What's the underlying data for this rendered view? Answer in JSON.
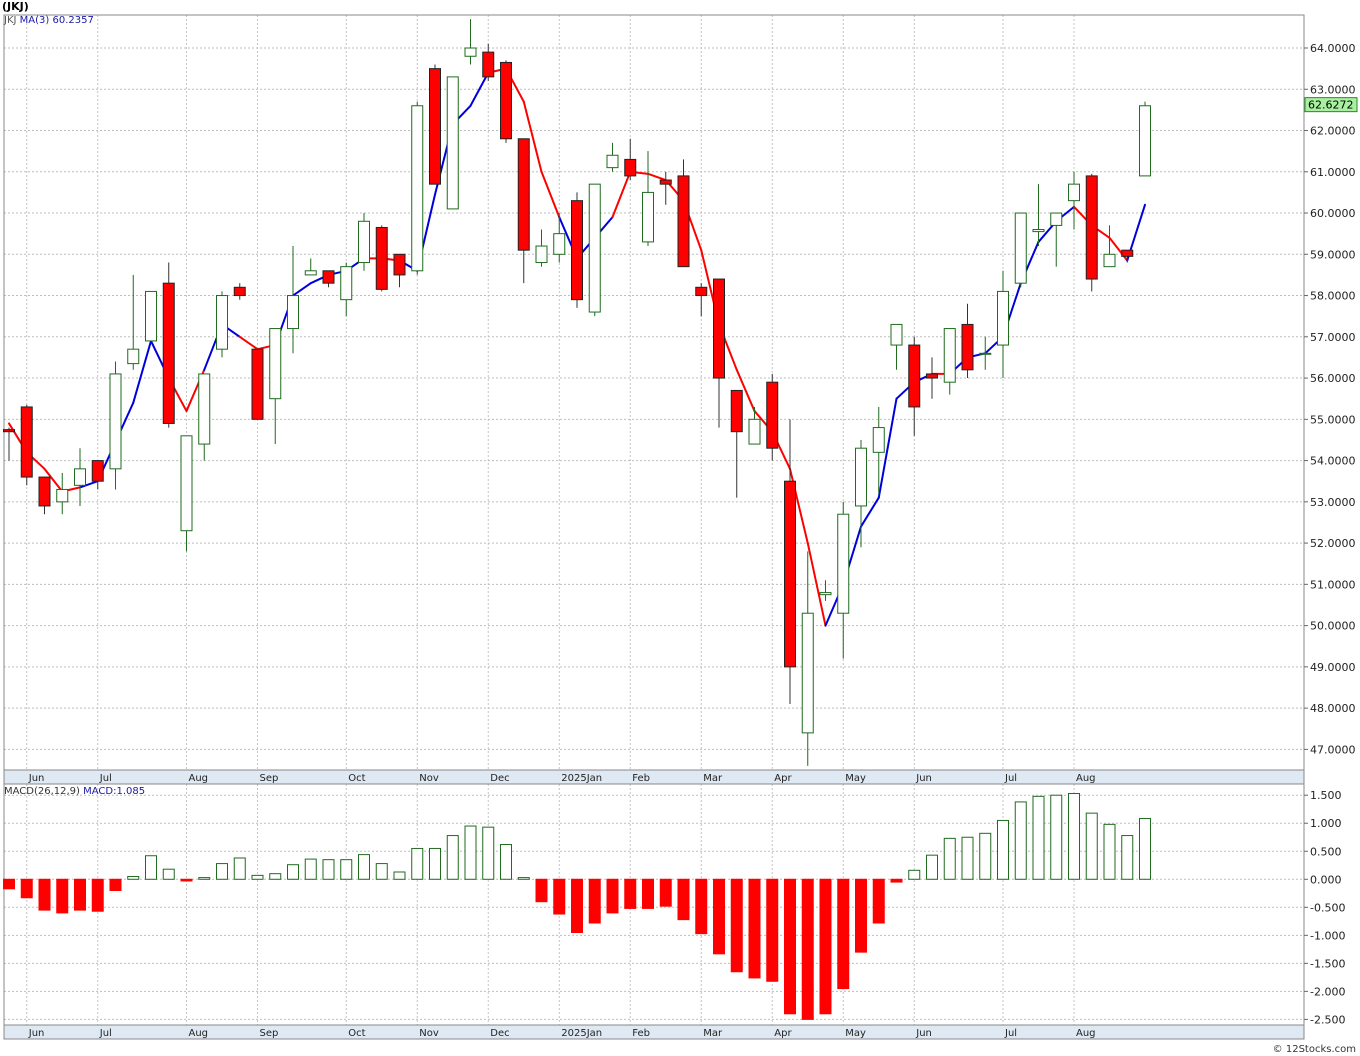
{
  "header": {
    "ticker": "(JKJ)"
  },
  "legend_top": {
    "symbol": "JKJ",
    "ma_label": "MA(3)",
    "ma_value": "60.2357"
  },
  "legend_bottom": {
    "macd_label": "MACD(26,12,9)",
    "macd_value": "MACD:1.085"
  },
  "credit": "© 12Stocks.com",
  "colors": {
    "up": "#1f6b1f",
    "down": "#ff0000",
    "ma_up": "#0000dd",
    "ma_down": "#ff0000",
    "last_price_box": "#a8f0a0"
  },
  "chart_data": [
    {
      "type": "candlestick",
      "ylim": [
        46.5,
        64.8
      ],
      "y_ticks": [
        "47.0000",
        "48.0000",
        "49.0000",
        "50.0000",
        "51.0000",
        "52.0000",
        "53.0000",
        "54.0000",
        "55.0000",
        "56.0000",
        "57.0000",
        "58.0000",
        "59.0000",
        "60.0000",
        "61.0000",
        "62.0000",
        "63.0000",
        "64.0000"
      ],
      "x_labels": [
        "Jun",
        "Jul",
        "Aug",
        "Sep",
        "Oct",
        "Nov",
        "Dec",
        "2025Jan",
        "Feb",
        "Mar",
        "Apr",
        "May",
        "Jun",
        "Jul",
        "Aug"
      ],
      "x_label_week": [
        1,
        5,
        10,
        14,
        19,
        23,
        27,
        31,
        35,
        39,
        43,
        47,
        51,
        56,
        60
      ],
      "last_price": "62.6272",
      "candles": [
        [
          54.75,
          54.8,
          54.0,
          54.7
        ],
        [
          55.3,
          55.35,
          53.4,
          53.6
        ],
        [
          53.6,
          53.6,
          52.7,
          52.9
        ],
        [
          53.0,
          53.7,
          52.7,
          53.3
        ],
        [
          53.4,
          54.3,
          52.9,
          53.8
        ],
        [
          54.0,
          54.0,
          53.3,
          53.5
        ],
        [
          53.8,
          56.4,
          53.3,
          56.1
        ],
        [
          56.35,
          58.5,
          56.2,
          56.7
        ],
        [
          56.9,
          58.1,
          56.9,
          58.1
        ],
        [
          58.3,
          58.8,
          54.8,
          54.9
        ],
        [
          52.3,
          54.6,
          51.8,
          54.6
        ],
        [
          54.4,
          56.1,
          54.0,
          56.1
        ],
        [
          56.7,
          58.1,
          56.5,
          58.0
        ],
        [
          58.2,
          58.3,
          57.9,
          58.0
        ],
        [
          56.7,
          56.7,
          55.0,
          55.0
        ],
        [
          55.5,
          57.1,
          54.4,
          57.2
        ],
        [
          57.2,
          59.2,
          56.6,
          58.0
        ],
        [
          58.5,
          58.9,
          58.5,
          58.6
        ],
        [
          58.6,
          58.6,
          58.2,
          58.3
        ],
        [
          57.9,
          58.8,
          57.5,
          58.7
        ],
        [
          58.8,
          60.0,
          58.6,
          59.8
        ],
        [
          59.65,
          59.7,
          58.1,
          58.15
        ],
        [
          59.0,
          59.0,
          58.2,
          58.5
        ],
        [
          58.6,
          62.7,
          58.5,
          62.6
        ],
        [
          63.5,
          63.6,
          60.7,
          60.7
        ],
        [
          60.1,
          63.3,
          60.1,
          63.3
        ],
        [
          63.8,
          64.7,
          63.6,
          64.0
        ],
        [
          63.9,
          64.1,
          63.2,
          63.3
        ],
        [
          63.65,
          63.7,
          61.7,
          61.8
        ],
        [
          61.8,
          61.8,
          58.3,
          59.1
        ],
        [
          58.8,
          59.6,
          58.7,
          59.2
        ],
        [
          59.0,
          60.0,
          58.8,
          59.5
        ],
        [
          60.3,
          60.5,
          57.7,
          57.9
        ],
        [
          57.6,
          60.7,
          57.5,
          60.7
        ],
        [
          61.1,
          61.7,
          61.0,
          61.4
        ],
        [
          61.3,
          61.8,
          60.8,
          60.9
        ],
        [
          59.3,
          61.5,
          59.2,
          60.5
        ],
        [
          60.8,
          61.0,
          60.2,
          60.7
        ],
        [
          60.9,
          61.3,
          58.7,
          58.7
        ],
        [
          58.2,
          58.3,
          57.5,
          58.0
        ],
        [
          58.4,
          58.4,
          54.8,
          56.0
        ],
        [
          55.7,
          55.7,
          53.1,
          54.7
        ],
        [
          54.4,
          55.3,
          54.4,
          55.0
        ],
        [
          55.9,
          56.1,
          54.0,
          54.3
        ],
        [
          53.5,
          55.0,
          48.1,
          49.0
        ],
        [
          47.4,
          51.8,
          46.6,
          50.3
        ],
        [
          50.75,
          51.1,
          50.6,
          50.8
        ],
        [
          50.3,
          53.0,
          49.2,
          52.7
        ],
        [
          52.9,
          54.5,
          51.9,
          54.3
        ],
        [
          54.2,
          55.3,
          53.2,
          54.8
        ],
        [
          56.8,
          57.3,
          56.2,
          57.3
        ],
        [
          56.8,
          57.0,
          54.6,
          55.3
        ],
        [
          56.1,
          56.5,
          55.5,
          56.0
        ],
        [
          55.9,
          57.2,
          55.6,
          57.2
        ],
        [
          57.3,
          57.8,
          56.0,
          56.2
        ],
        [
          56.6,
          57.0,
          56.2,
          56.6
        ],
        [
          56.8,
          58.6,
          56.0,
          58.1
        ],
        [
          58.3,
          60.0,
          58.2,
          60.0
        ],
        [
          59.55,
          60.7,
          59.2,
          59.6
        ],
        [
          59.7,
          60.0,
          58.7,
          60.0
        ],
        [
          60.3,
          61.0,
          59.6,
          60.7
        ],
        [
          60.9,
          60.95,
          58.1,
          58.4
        ],
        [
          58.7,
          59.7,
          58.7,
          59.0
        ],
        [
          59.1,
          59.1,
          58.8,
          58.95
        ],
        [
          60.9,
          62.7,
          60.9,
          62.6
        ]
      ],
      "ma3": [
        54.9,
        54.2,
        53.8,
        53.25,
        53.35,
        53.5,
        54.45,
        55.4,
        56.9,
        56.0,
        55.2,
        56.2,
        57.3,
        57.0,
        56.7,
        56.8,
        58.0,
        58.3,
        58.5,
        58.6,
        58.9,
        58.9,
        58.85,
        58.6,
        60.45,
        62.15,
        62.6,
        63.4,
        63.5,
        62.7,
        61.0,
        59.9,
        58.9,
        59.4,
        59.9,
        61.0,
        60.95,
        60.8,
        60.3,
        59.1,
        57.3,
        56.2,
        55.2,
        54.7,
        53.8,
        52.0,
        50.0,
        51.0,
        52.4,
        53.1,
        55.5,
        55.9,
        56.1,
        56.1,
        56.5,
        56.6,
        57.0,
        58.3,
        59.3,
        59.8,
        60.15,
        59.7,
        59.4,
        58.85,
        60.2
      ],
      "ma_color_direction": [
        "d",
        "d",
        "d",
        "d",
        "u",
        "u",
        "u",
        "u",
        "u",
        "d",
        "d",
        "u",
        "u",
        "d",
        "d",
        "u",
        "u",
        "u",
        "u",
        "u",
        "d",
        "d",
        "u",
        "u",
        "u",
        "u",
        "u",
        "d",
        "d",
        "d",
        "d",
        "u",
        "u",
        "u",
        "d",
        "d",
        "d",
        "d",
        "d",
        "d",
        "d",
        "d",
        "d",
        "d",
        "d",
        "d",
        "u",
        "u",
        "u",
        "u",
        "u",
        "u",
        "d",
        "u",
        "u",
        "u",
        "u",
        "u",
        "u",
        "u",
        "d",
        "d",
        "d",
        "u"
      ]
    },
    {
      "type": "bar",
      "name": "MACD(26,12,9)",
      "ylim": [
        -2.6,
        1.7
      ],
      "y_ticks": [
        "1.500",
        "1.000",
        "0.500",
        "0.000",
        "-0.500",
        "-1.000",
        "-1.500",
        "-2.000",
        "-2.500"
      ],
      "values": [
        -0.17,
        -0.33,
        -0.55,
        -0.6,
        -0.55,
        -0.57,
        -0.2,
        0.05,
        0.42,
        0.18,
        -0.03,
        0.03,
        0.28,
        0.38,
        0.07,
        0.1,
        0.26,
        0.36,
        0.35,
        0.35,
        0.44,
        0.28,
        0.13,
        0.55,
        0.55,
        0.78,
        0.95,
        0.93,
        0.62,
        0.03,
        -0.4,
        -0.62,
        -0.95,
        -0.78,
        -0.6,
        -0.52,
        -0.52,
        -0.48,
        -0.72,
        -0.97,
        -1.33,
        -1.65,
        -1.76,
        -1.82,
        -2.4,
        -2.5,
        -2.4,
        -1.95,
        -1.3,
        -0.78,
        -0.05,
        0.16,
        0.43,
        0.73,
        0.75,
        0.82,
        1.05,
        1.38,
        1.48,
        1.5,
        1.53,
        1.18,
        0.98,
        0.78,
        1.085
      ]
    }
  ]
}
